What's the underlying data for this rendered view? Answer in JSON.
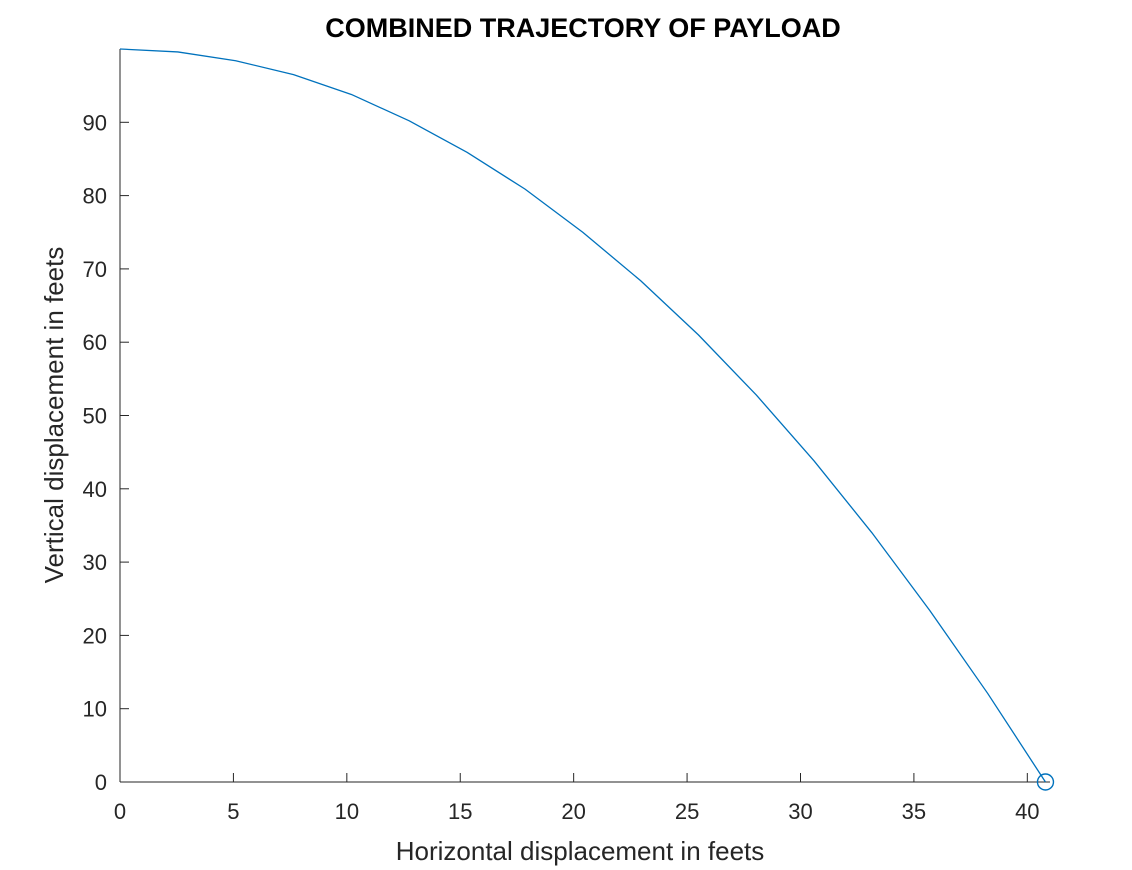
{
  "chart_data": {
    "type": "line",
    "title": "COMBINED TRAJECTORY OF PAYLOAD",
    "xlabel": "Horizontal displacement in feets",
    "ylabel": "Vertical displacement in feets",
    "xlim": [
      0,
      41
    ],
    "ylim": [
      0,
      100
    ],
    "xticks": [
      0,
      5,
      10,
      15,
      20,
      25,
      30,
      35,
      40
    ],
    "yticks": [
      0,
      10,
      20,
      30,
      40,
      50,
      60,
      70,
      80,
      90
    ],
    "grid": false,
    "legend": "none",
    "series": [
      {
        "color": "#0072bd",
        "x": [
          0,
          2.55,
          5.1,
          7.65,
          10.2,
          12.75,
          15.3,
          17.85,
          20.4,
          22.95,
          25.5,
          28.05,
          30.6,
          33.15,
          35.7,
          38.25,
          40.8
        ],
        "y": [
          100,
          99.6,
          98.4,
          96.5,
          93.8,
          90.2,
          85.9,
          80.9,
          75.0,
          68.4,
          61.0,
          52.8,
          43.8,
          34.0,
          23.4,
          12.1,
          0
        ]
      }
    ],
    "markers": [
      {
        "symbol": "circle",
        "x": 40.8,
        "y": 0,
        "color": "#0072bd"
      }
    ]
  }
}
